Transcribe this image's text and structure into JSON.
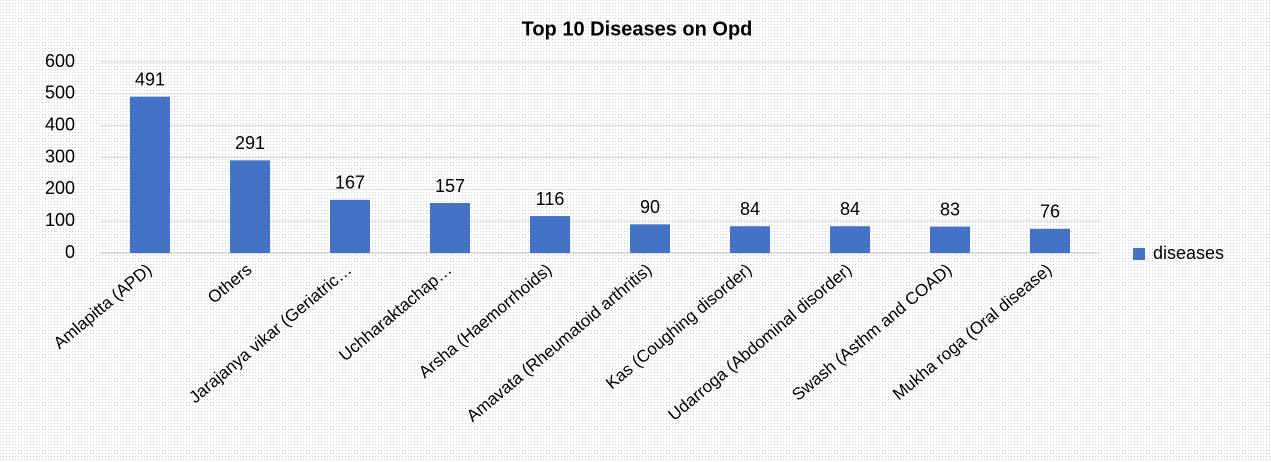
{
  "chart_data": {
    "type": "bar",
    "title": "Top 10 Diseases on Opd",
    "categories": [
      "Amlapitta (APD)",
      "Others",
      "Jarajanya vikar (Geriatric…",
      "Uchharaktachap…",
      "Arsha (Haemorrhoids)",
      "Amavata (Rheumatoid arthritis)",
      "Kas (Coughing disorder)",
      "Udarroga (Abdominal disorder)",
      "Swash (Asthm and COAD)",
      "Mukha roga (Oral disease)"
    ],
    "series": [
      {
        "name": "diseases",
        "color": "#4472c4",
        "values": [
          491,
          291,
          167,
          157,
          116,
          90,
          84,
          84,
          83,
          76
        ]
      }
    ],
    "ylim": [
      0,
      600
    ],
    "yticks": [
      0,
      100,
      200,
      300,
      400,
      500,
      600
    ],
    "grid": true,
    "legend": "right"
  }
}
